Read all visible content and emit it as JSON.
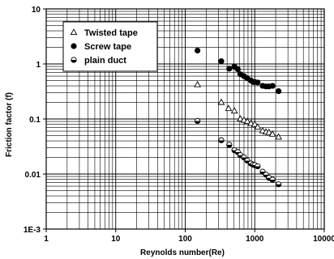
{
  "chart_data": {
    "type": "scatter",
    "xlabel": "Reynolds number(Re)",
    "ylabel": "Friction factor (f)",
    "xscale": "log",
    "yscale": "log",
    "xlim": [
      1,
      10000
    ],
    "ylim": [
      0.001,
      10
    ],
    "x_ticks": [
      {
        "value": 1,
        "label": "1"
      },
      {
        "value": 10,
        "label": "10"
      },
      {
        "value": 100,
        "label": "100"
      },
      {
        "value": 1000,
        "label": "1000"
      },
      {
        "value": 10000,
        "label": "10000"
      }
    ],
    "y_ticks": [
      {
        "value": 0.001,
        "label": "1E-3"
      },
      {
        "value": 0.01,
        "label": "0.01"
      },
      {
        "value": 0.1,
        "label": "0.1"
      },
      {
        "value": 1,
        "label": "1"
      },
      {
        "value": 10,
        "label": "10"
      }
    ],
    "grid": true,
    "legend_position": "top-left",
    "series": [
      {
        "name": "Twisted tape",
        "marker": "open-triangle",
        "x": [
          150,
          330,
          420,
          510,
          620,
          700,
          780,
          880,
          1000,
          1100,
          1300,
          1450,
          1600,
          1800,
          2200
        ],
        "y": [
          0.42,
          0.2,
          0.155,
          0.14,
          0.1,
          0.095,
          0.09,
          0.083,
          0.08,
          0.071,
          0.061,
          0.058,
          0.057,
          0.053,
          0.047
        ]
      },
      {
        "name": "Screw tape",
        "marker": "filled-circle",
        "x": [
          150,
          330,
          430,
          510,
          570,
          620,
          700,
          780,
          880,
          950,
          1000,
          1100,
          1300,
          1450,
          1600,
          1800,
          2200
        ],
        "y": [
          1.75,
          1.12,
          0.82,
          0.9,
          0.8,
          0.65,
          0.6,
          0.55,
          0.5,
          0.47,
          0.47,
          0.46,
          0.4,
          0.39,
          0.39,
          0.4,
          0.32
        ]
      },
      {
        "name": "plain duct",
        "marker": "half-filled-circle",
        "x": [
          150,
          330,
          430,
          510,
          570,
          620,
          700,
          780,
          880,
          950,
          1000,
          1100,
          1300,
          1450,
          1600,
          1800,
          2200
        ],
        "y": [
          0.092,
          0.041,
          0.034,
          0.027,
          0.025,
          0.022,
          0.02,
          0.0175,
          0.0155,
          0.0148,
          0.0145,
          0.0138,
          0.011,
          0.0097,
          0.0085,
          0.0079,
          0.0065
        ]
      }
    ]
  },
  "colors": {
    "axis": "#000000",
    "grid": "#000000",
    "marker": "#000000",
    "background": "#ffffff"
  }
}
